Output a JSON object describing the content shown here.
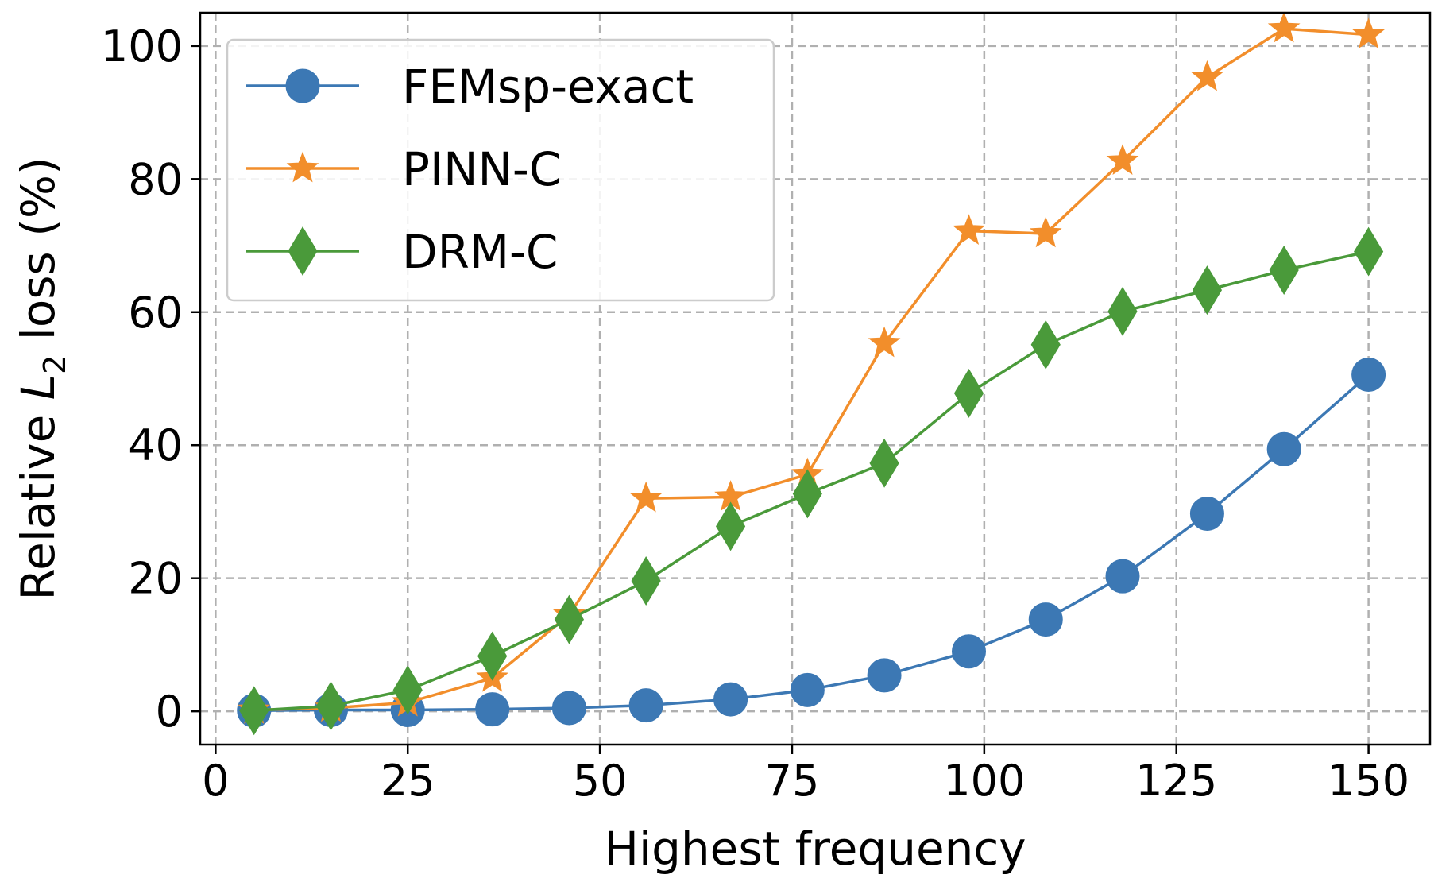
{
  "chart_data": {
    "type": "line",
    "title": "",
    "xlabel": "Highest frequency",
    "ylabel_prefix": "Relative ",
    "ylabel_symbol": "L",
    "ylabel_subscript": "2",
    "ylabel_suffix": " loss (%)",
    "xlim": [
      -2,
      158
    ],
    "ylim": [
      -5,
      105
    ],
    "xticks": [
      0,
      25,
      50,
      75,
      100,
      125,
      150
    ],
    "yticks": [
      0,
      20,
      40,
      60,
      80,
      100
    ],
    "grid": true,
    "legend_position": "top-left",
    "x": [
      5,
      15,
      25,
      36,
      46,
      56,
      67,
      77,
      87,
      98,
      108,
      118,
      129,
      139,
      150
    ],
    "series": [
      {
        "name": "FEMsp-exact",
        "color": "#3c78b4",
        "marker": "circle",
        "values": [
          0.1,
          0.2,
          0.2,
          0.3,
          0.5,
          0.9,
          1.8,
          3.2,
          5.4,
          9.0,
          13.8,
          20.3,
          29.7,
          39.4,
          50.6
        ]
      },
      {
        "name": "PINN-C",
        "color": "#f28e2b",
        "marker": "star",
        "values": [
          0.2,
          0.5,
          1.3,
          5.0,
          14.5,
          32.0,
          32.2,
          35.6,
          55.3,
          72.2,
          71.8,
          82.7,
          95.3,
          102.6,
          101.7
        ]
      },
      {
        "name": "DRM-C",
        "color": "#4a9a3a",
        "marker": "diamond",
        "values": [
          0.1,
          0.8,
          3.2,
          8.3,
          13.8,
          19.6,
          27.8,
          32.7,
          37.3,
          47.8,
          55.1,
          60.1,
          63.3,
          66.3,
          69.1
        ]
      }
    ]
  }
}
